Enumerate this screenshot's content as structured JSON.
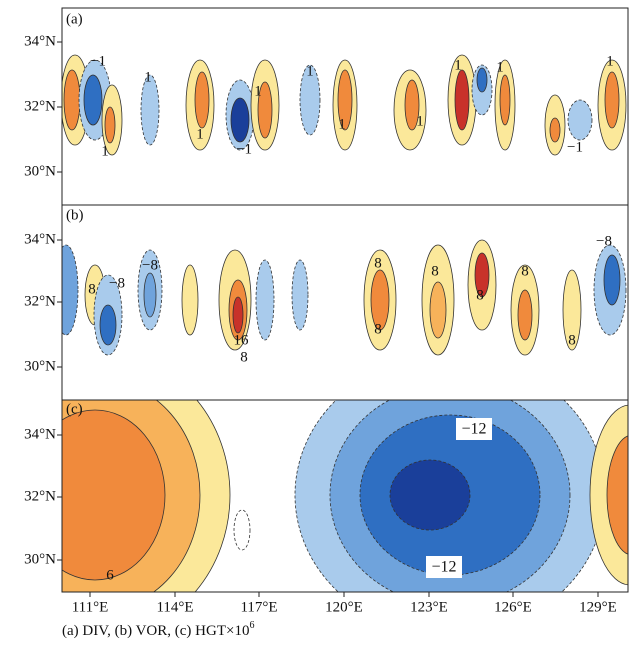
{
  "panels": [
    {
      "label": "(a)",
      "yticks": [
        "34°N",
        "32°N",
        "30°N"
      ],
      "contour_labels": [
        "−1",
        "1",
        "1",
        "1",
        "1",
        "1",
        "1",
        "1",
        "1",
        "−1",
        "1",
        "−1",
        "1"
      ]
    },
    {
      "label": "(b)",
      "yticks": [
        "34°N",
        "32°N",
        "30°N"
      ],
      "contour_labels": [
        "−8",
        "8",
        "−8",
        "8",
        "8",
        "8",
        "8",
        "16",
        "8",
        "8",
        "8",
        "−8"
      ]
    },
    {
      "label": "(c)",
      "yticks": [
        "34°N",
        "32°N",
        "30°N"
      ],
      "contour_labels": [
        "6",
        "−12",
        "−12"
      ]
    }
  ],
  "xticks": [
    "111°E",
    "114°E",
    "117°E",
    "120°E",
    "123°E",
    "126°E",
    "129°E"
  ],
  "caption": {
    "text": "(a) DIV,  (b) VOR,  (c) HGT×10",
    "superscript": "6"
  }
}
